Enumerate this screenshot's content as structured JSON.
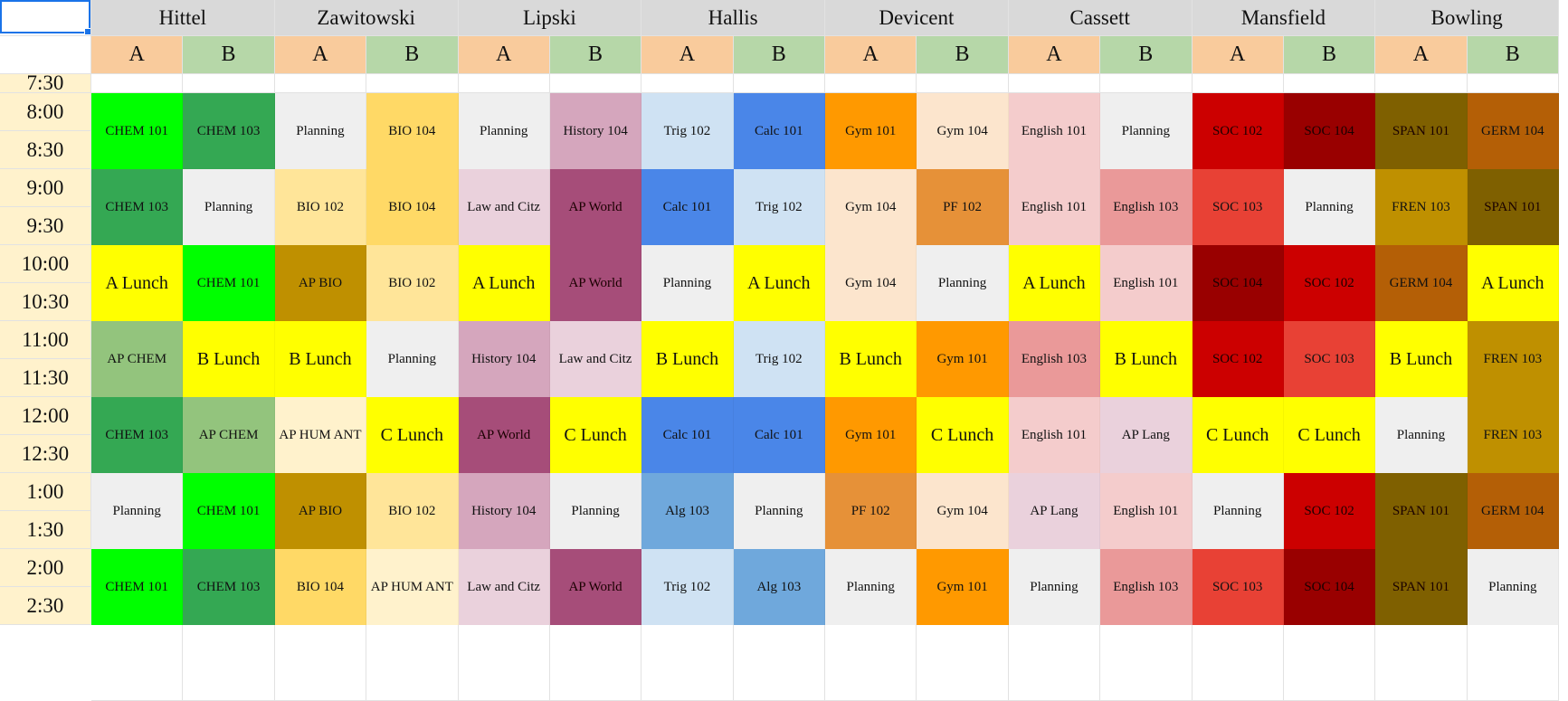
{
  "teachers": [
    "Hittel",
    "Zawitowski",
    "Lipski",
    "Hallis",
    "Devicent",
    "Cassett",
    "Mansfield",
    "Bowling"
  ],
  "ab_labels": [
    "A",
    "B"
  ],
  "ab_colors": {
    "A": "#f9cb9c",
    "B": "#b6d7a8"
  },
  "times": [
    "7:30",
    "8:00",
    "8:30",
    "9:00",
    "9:30",
    "10:00",
    "10:30",
    "11:00",
    "11:30",
    "12:00",
    "12:30",
    "1:00",
    "1:30",
    "2:00",
    "2:30"
  ],
  "class_colors": {
    "CHEM 101": "#00ff00",
    "CHEM 103": "#34a853",
    "AP CHEM": "#93c47d",
    "Planning": "#efefef",
    "A Lunch": "#ffff00",
    "B Lunch": "#ffff00",
    "C Lunch": "#ffff00",
    "BIO 104": "#ffd966",
    "BIO 102": "#ffe599",
    "AP BIO": "#bf9000",
    "AP HUM ANT": "#fff2cc",
    "History 104": "#d5a6bd",
    "Law and Citz": "#ead1dc",
    "AP World": "#a64d79",
    "Trig 102": "#cfe2f3",
    "Calc 101": "#4a86e8",
    "Alg 103": "#6fa8dc",
    "Gym 101": "#ff9900",
    "Gym 104": "#fce5cd",
    "PF 102": "#e69138",
    "English 101": "#f4cccc",
    "English 103": "#ea9999",
    "AP Lang": "#ead1dc",
    "SOC 102": "#cc0000",
    "SOC 104": "#990000",
    "SOC 103": "#e84135",
    "SPAN 101": "#7f6000",
    "GERM 104": "#b45f06",
    "FREN 103": "#bf9000"
  },
  "schedule": [
    [
      "CHEM 101",
      "CHEM 103",
      "Planning",
      "BIO 104",
      "Planning",
      "History 104",
      "Trig 102",
      "Calc 101",
      "Gym 101",
      "Gym 104",
      "English 101",
      "Planning",
      "SOC 102",
      "SOC 104",
      "SPAN 101",
      "GERM 104"
    ],
    [
      "CHEM 103",
      "Planning",
      "BIO 102",
      "BIO 104",
      "Law and Citz",
      "AP World",
      "Calc 101",
      "Trig 102",
      "Gym 104",
      "PF 102",
      "English 101",
      "English 103",
      "SOC 103",
      "Planning",
      "FREN 103",
      "SPAN 101"
    ],
    [
      "A Lunch",
      "CHEM 101",
      "AP BIO",
      "BIO 102",
      "A Lunch",
      "AP World",
      "Planning",
      "A Lunch",
      "Gym 104",
      "Planning",
      "A Lunch",
      "English 101",
      "SOC 104",
      "SOC 102",
      "GERM 104",
      "A Lunch"
    ],
    [
      "AP CHEM",
      "B Lunch",
      "B Lunch",
      "Planning",
      "History 104",
      "Law and Citz",
      "B Lunch",
      "Trig 102",
      "B Lunch",
      "Gym 101",
      "English 103",
      "B Lunch",
      "SOC 102",
      "SOC 103",
      "B Lunch",
      "FREN 103"
    ],
    [
      "CHEM 103",
      "AP CHEM",
      "AP HUM ANT",
      "C Lunch",
      "AP World",
      "C Lunch",
      "Calc 101",
      "Calc 101",
      "Gym 101",
      "C Lunch",
      "English 101",
      "AP Lang",
      "C Lunch",
      "C Lunch",
      "Planning",
      "FREN 103"
    ],
    [
      "Planning",
      "CHEM 101",
      "AP BIO",
      "BIO 102",
      "History 104",
      "Planning",
      "Alg 103",
      "Planning",
      "PF 102",
      "Gym 104",
      "AP Lang",
      "English 101",
      "Planning",
      "SOC 102",
      "SPAN 101",
      "GERM 104"
    ],
    [
      "CHEM 101",
      "CHEM 103",
      "BIO 104",
      "AP HUM ANT",
      "Law and Citz",
      "AP World",
      "Trig 102",
      "Alg 103",
      "Planning",
      "Gym 101",
      "Planning",
      "English 103",
      "SOC 103",
      "SOC 104",
      "SPAN 101",
      "Planning"
    ]
  ]
}
